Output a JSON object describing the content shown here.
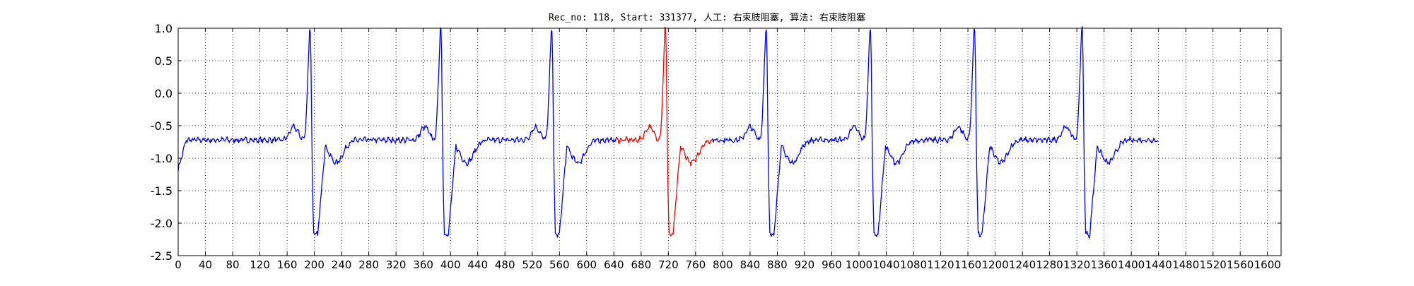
{
  "chart_data": {
    "type": "line",
    "title": "Rec_no: 118, Start: 331377, 人工: 右束肢阻塞, 算法: 右束肢阻塞",
    "xlabel": "",
    "ylabel": "",
    "xlim": [
      0,
      1620
    ],
    "ylim": [
      -2.5,
      1.0
    ],
    "yticks": [
      "-2.5",
      "-2.0",
      "-1.5",
      "-1.0",
      "-0.5",
      "0.0",
      "0.5",
      "1.0"
    ],
    "xtick_step": 40,
    "xtick_labels": [
      "0",
      "40",
      "80",
      "120",
      "160",
      "200",
      "240",
      "280",
      "320",
      "360",
      "400",
      "440",
      "480",
      "520",
      "560",
      "600",
      "640",
      "680",
      "720",
      "760",
      "800",
      "840",
      "880",
      "920",
      "960",
      "1000",
      "1040",
      "1080",
      "1120",
      "1160",
      "1200",
      "1240",
      "1280",
      "1320",
      "1360",
      "1400",
      "1440",
      "1480",
      "1520",
      "1560",
      "1600"
    ],
    "grid": true,
    "grid_style": "dotted",
    "n_samples": 1440,
    "beat_peaks": [
      194,
      386,
      549,
      716,
      864,
      1017,
      1170,
      1328
    ],
    "highlight_range": [
      644,
      784
    ],
    "colors": {
      "signal": "#0000ff",
      "highlight": "#ff0000",
      "grid": "#000000",
      "axes": "#000000"
    },
    "series": []
  }
}
